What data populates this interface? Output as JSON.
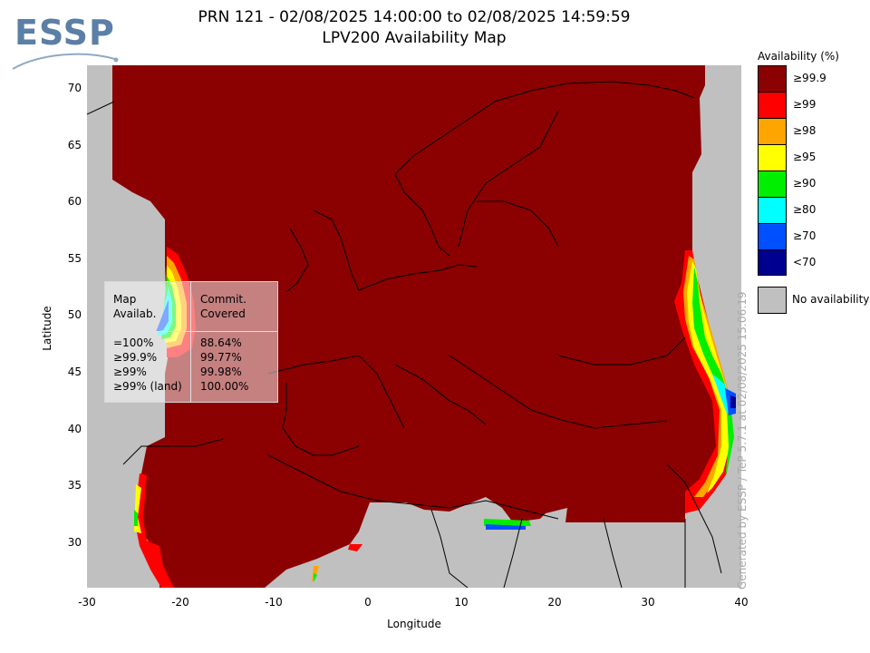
{
  "logo": {
    "text": "ESSP"
  },
  "header": {
    "title": "PRN 121 - 02/08/2025 14:00:00 to 02/08/2025 14:59:59",
    "subtitle": "LPV200 Availability Map"
  },
  "axes": {
    "xlabel": "Longitude",
    "ylabel": "Latitude",
    "xticks": [
      "-30",
      "-20",
      "-10",
      "0",
      "10",
      "20",
      "30",
      "40"
    ],
    "yticks": [
      "70",
      "65",
      "60",
      "55",
      "50",
      "45",
      "40",
      "35",
      "30"
    ],
    "xlim": [
      -30,
      40
    ],
    "ylim": [
      26,
      72
    ]
  },
  "legend": {
    "title": "Availability (%)",
    "items": [
      {
        "label": "≥99.9",
        "color": "#8b0000"
      },
      {
        "label": "≥99",
        "color": "#ff0000"
      },
      {
        "label": "≥98",
        "color": "#ffa500"
      },
      {
        "label": "≥95",
        "color": "#ffff00"
      },
      {
        "label": "≥90",
        "color": "#00ee00"
      },
      {
        "label": "≥80",
        "color": "#00ffff"
      },
      {
        "label": "≥70",
        "color": "#0050ff"
      },
      {
        "label": "<70",
        "color": "#000090"
      }
    ],
    "no_availability": {
      "label": "No availability",
      "color": "#c0c0c0"
    }
  },
  "stats": {
    "col1_header_line1": "Map",
    "col1_header_line2": "Availab.",
    "col2_header_line1": "Commit.",
    "col2_header_line2": "Covered",
    "rows": [
      {
        "level": "=100%",
        "value": "88.64%"
      },
      {
        "level": "≥99.9%",
        "value": "99.77%"
      },
      {
        "level": "≥99%",
        "value": "99.98%"
      },
      {
        "level": "≥99% (land)",
        "value": "100.00%"
      }
    ]
  },
  "watermark": "Generated by ESSP / TeP 5.7.1 at 02/08/2025 15:06:19"
}
